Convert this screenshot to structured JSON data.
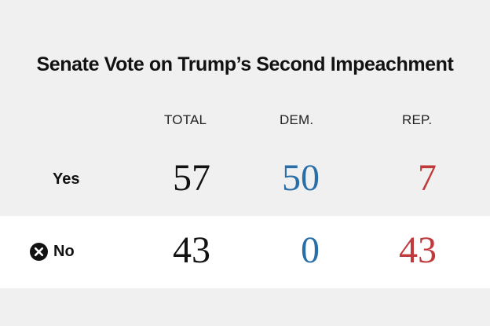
{
  "chart_data": {
    "type": "table",
    "title": "Senate Vote on Trump’s Second Impeachment",
    "columns": [
      "TOTAL",
      "DEM.",
      "REP."
    ],
    "rows": [
      {
        "label": "Yes",
        "values": [
          57,
          50,
          7
        ]
      },
      {
        "label": "No",
        "values": [
          43,
          0,
          43
        ]
      }
    ],
    "colors": {
      "total": "#121212",
      "dem": "#2a6ea8",
      "rep": "#c0393b",
      "no_icon": "#121212"
    },
    "icons": {
      "no_row": "close-circle-icon"
    }
  }
}
